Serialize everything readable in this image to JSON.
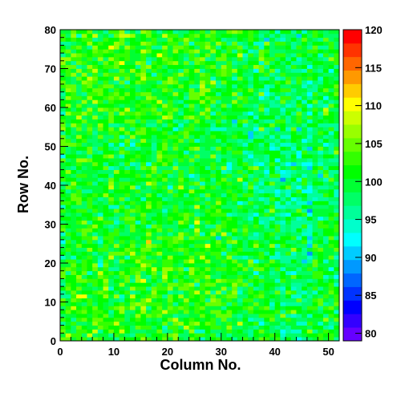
{
  "chart_data": {
    "type": "heatmap",
    "xlabel": "Column No.",
    "ylabel": "Row No.",
    "xlim": [
      0,
      52
    ],
    "ylim": [
      0,
      80
    ],
    "x_bins": 52,
    "y_bins": 80,
    "x_ticks": [
      0,
      10,
      20,
      30,
      40,
      50
    ],
    "y_ticks": [
      0,
      10,
      20,
      30,
      40,
      50,
      60,
      70,
      80
    ],
    "zlim": [
      79,
      120
    ],
    "colorbar_ticks": [
      80,
      85,
      90,
      95,
      100,
      105,
      110,
      115,
      120
    ],
    "colorbar_levels": 20,
    "palette": [
      "#6600ff",
      "#3300ff",
      "#0000ff",
      "#0033ff",
      "#0066ff",
      "#0099ff",
      "#00ccff",
      "#00ffff",
      "#00ffcc",
      "#00ff99",
      "#00ff66",
      "#00ff33",
      "#00ff00",
      "#33ff00",
      "#66ff00",
      "#99ff00",
      "#ccff00",
      "#ffff00",
      "#ffcc00",
      "#ff9900",
      "#ff6600",
      "#ff3300",
      "#ff0000"
    ],
    "grid": false,
    "legend": "colorbar-right",
    "value_summary": {
      "mean": 99,
      "spread": 5,
      "note_trend": "columns 28-50 lower (~96), columns 0-25 higher (~101)"
    }
  }
}
